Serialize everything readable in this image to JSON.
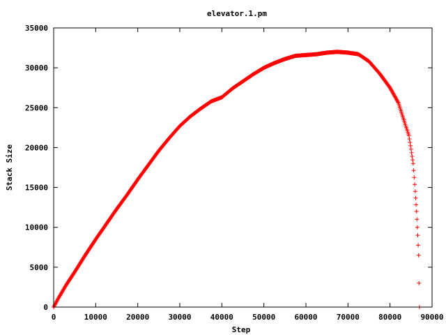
{
  "chart_data": {
    "type": "scatter",
    "title": "elevator.1.pm",
    "xlabel": "Step",
    "ylabel": "Stack Size",
    "xlim": [
      0,
      90000
    ],
    "ylim": [
      0,
      35000
    ],
    "xticks": [
      0,
      10000,
      20000,
      30000,
      40000,
      50000,
      60000,
      70000,
      80000,
      90000
    ],
    "yticks": [
      0,
      5000,
      10000,
      15000,
      20000,
      25000,
      30000,
      35000
    ],
    "xtick_labels": [
      "0",
      "10000",
      "20000",
      "30000",
      "40000",
      "50000",
      "60000",
      "70000",
      "80000",
      "90000"
    ],
    "ytick_labels": [
      "0",
      "5000",
      "10000",
      "15000",
      "20000",
      "25000",
      "30000",
      "35000"
    ],
    "marker": "plus",
    "grid": false,
    "legend": "none",
    "colors": {
      "series": "#ff0000",
      "axes": "#000000",
      "background": "#ffffff"
    },
    "series": [
      {
        "x": [
          0,
          1000,
          2000,
          3000,
          5000,
          7500,
          10000,
          12500,
          15000,
          17500,
          20000,
          22500,
          25000,
          27500,
          30000,
          32500,
          35000,
          37500,
          40000,
          42500,
          45000,
          47500,
          50000,
          52500,
          55000,
          57500,
          60000,
          62500,
          65000,
          67500,
          70000,
          72500,
          75000,
          77500,
          80000,
          82000,
          83500,
          84500,
          85000,
          85500,
          86000,
          86300,
          86600,
          86800,
          86900,
          87000
        ],
        "y": [
          0,
          1000,
          1900,
          2800,
          4400,
          6500,
          8500,
          10400,
          12300,
          14100,
          16000,
          17800,
          19600,
          21200,
          22700,
          23900,
          24900,
          25800,
          26300,
          27400,
          28300,
          29200,
          30000,
          30600,
          31100,
          31500,
          31600,
          31700,
          31900,
          32000,
          31900,
          31700,
          30800,
          29300,
          27500,
          25600,
          23100,
          21500,
          19800,
          18000,
          14500,
          12000,
          9000,
          6500,
          3000,
          0
        ]
      }
    ]
  }
}
